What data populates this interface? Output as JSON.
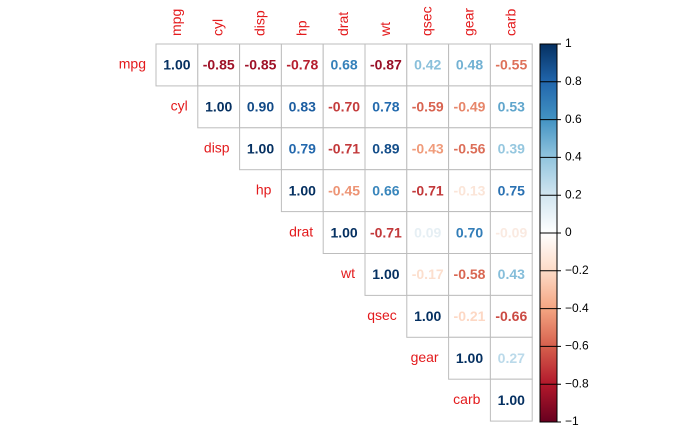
{
  "chart_data": {
    "type": "heatmap",
    "layout": "upper-triangle",
    "title": "",
    "variables": [
      "mpg",
      "cyl",
      "disp",
      "hp",
      "drat",
      "wt",
      "qsec",
      "gear",
      "carb"
    ],
    "matrix": [
      [
        1.0,
        -0.85,
        -0.85,
        -0.78,
        0.68,
        -0.87,
        0.42,
        0.48,
        -0.55
      ],
      [
        null,
        1.0,
        0.9,
        0.83,
        -0.7,
        0.78,
        -0.59,
        -0.49,
        0.53
      ],
      [
        null,
        null,
        1.0,
        0.79,
        -0.71,
        0.89,
        -0.43,
        -0.56,
        0.39
      ],
      [
        null,
        null,
        null,
        1.0,
        -0.45,
        0.66,
        -0.71,
        -0.13,
        0.75
      ],
      [
        null,
        null,
        null,
        null,
        1.0,
        -0.71,
        0.09,
        0.7,
        -0.09
      ],
      [
        null,
        null,
        null,
        null,
        null,
        1.0,
        -0.17,
        -0.58,
        0.43
      ],
      [
        null,
        null,
        null,
        null,
        null,
        null,
        1.0,
        -0.21,
        -0.66
      ],
      [
        null,
        null,
        null,
        null,
        null,
        null,
        null,
        1.0,
        0.27
      ],
      [
        null,
        null,
        null,
        null,
        null,
        null,
        null,
        null,
        1.0
      ]
    ],
    "value_range": [
      -1,
      1
    ],
    "legend": {
      "placement": "right",
      "ticks": [
        1,
        0.8,
        0.6,
        0.4,
        0.2,
        0,
        -0.2,
        -0.4,
        -0.6,
        -0.8,
        -1
      ],
      "tick_labels": [
        "1",
        "0.8",
        "0.6",
        "0.4",
        "0.2",
        "0",
        "−0.2",
        "−0.4",
        "−0.6",
        "−0.8",
        "−1"
      ]
    },
    "colors": {
      "label": "#e31a1c",
      "grid": "#bdbdbd",
      "strong_negative": "#67001f",
      "neutral": "#f7f7f7",
      "strong_positive": "#053061"
    }
  }
}
